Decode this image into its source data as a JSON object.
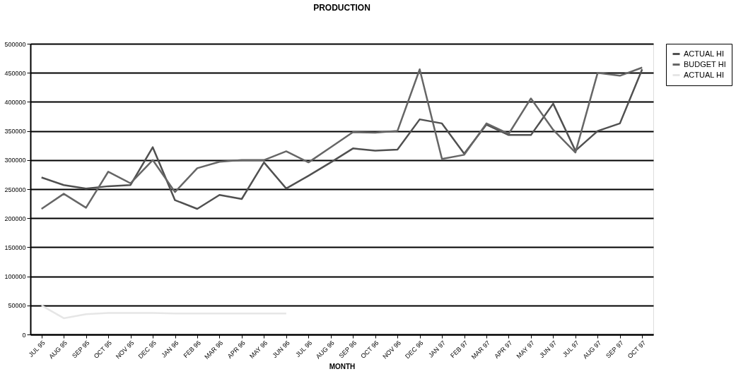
{
  "chart_data": {
    "type": "line",
    "title": "PRODUCTION",
    "xlabel": "MONTH",
    "categories": [
      "JUL 95",
      "AUG 95",
      "SEP 95",
      "OCT 95",
      "NOV 95",
      "DEC 95",
      "JAN 96",
      "FEB 96",
      "MAR 96",
      "APR 96",
      "MAY 96",
      "JUN 96",
      "JUL 96",
      "AUG 96",
      "SEP 96",
      "OCT 96",
      "NOV 96",
      "DEC 96",
      "JAN 97",
      "FEB 97",
      "MAR 97",
      "APR 97",
      "MAY 97",
      "JUN 97",
      "JUL 97",
      "AUG 97",
      "SEP 97",
      "OCT 97"
    ],
    "series": [
      {
        "name": "ACTUAL HI",
        "color": "#505050",
        "values": [
          270000,
          257000,
          251000,
          255000,
          257000,
          322000,
          231000,
          216000,
          240000,
          233000,
          296000,
          251000,
          273000,
          296000,
          320000,
          316000,
          318000,
          370000,
          363000,
          311000,
          361000,
          343000,
          343000,
          397000,
          316000,
          350000,
          363000,
          456000
        ]
      },
      {
        "name": "BUDGET HI",
        "color": "#666666",
        "values": [
          216000,
          242000,
          218000,
          280000,
          260000,
          300000,
          245000,
          286000,
          297000,
          300000,
          300000,
          315000,
          296000,
          322000,
          348000,
          347000,
          350000,
          456000,
          302000,
          309000,
          363000,
          345000,
          406000,
          352000,
          313000,
          450000,
          445000,
          459000
        ]
      },
      {
        "name": "ACTUAL HI",
        "color": "#e6e6e6",
        "values": [
          50000,
          28000,
          35000,
          37000,
          37000,
          37000,
          36000,
          36000,
          36000,
          36000,
          36000,
          36000,
          null,
          null,
          null,
          null,
          null,
          null,
          null,
          null,
          null,
          null,
          null,
          null,
          null,
          null,
          null,
          null
        ]
      }
    ],
    "ylim": [
      0,
      500000
    ],
    "yticks": [
      0,
      50000,
      100000,
      150000,
      200000,
      250000,
      300000,
      350000,
      400000,
      450000,
      500000
    ],
    "grid": "y",
    "legend": "right"
  }
}
